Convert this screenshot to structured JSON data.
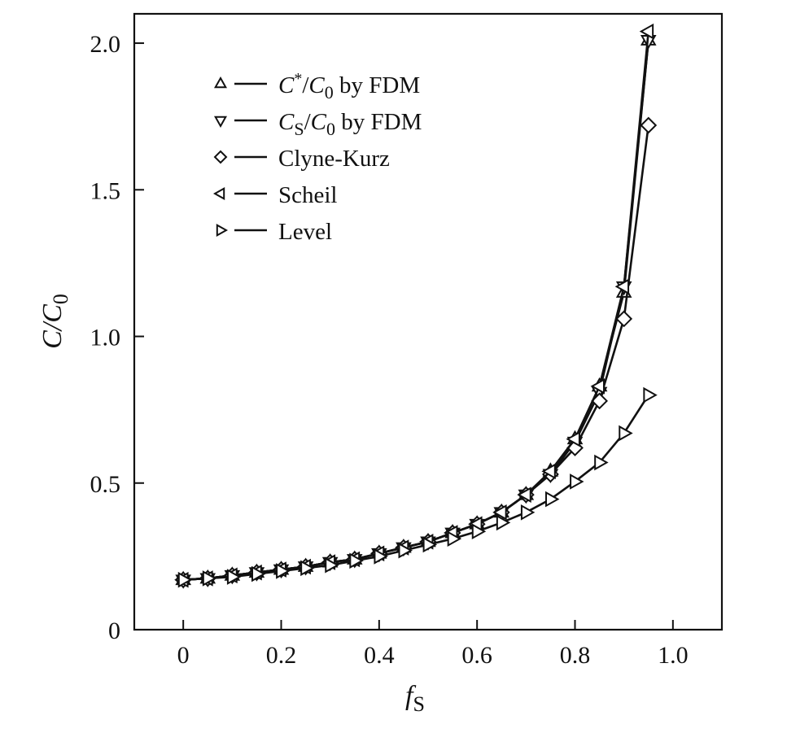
{
  "chart_data": {
    "type": "line",
    "xlabel": "f",
    "xlabel_sub": "S",
    "ylabel": "C/C",
    "ylabel_sub": "0",
    "xlim": [
      -0.1,
      1.1
    ],
    "ylim": [
      0,
      2.1
    ],
    "xticks": [
      0,
      0.2,
      0.4,
      0.6,
      0.8,
      1.0
    ],
    "xtick_labels": [
      "0",
      "0.2",
      "0.4",
      "0.6",
      "0.8",
      "1.0"
    ],
    "yticks": [
      0,
      0.5,
      1.0,
      1.5,
      2.0
    ],
    "ytick_labels": [
      "0",
      "0.5",
      "1.0",
      "1.5",
      "2.0"
    ],
    "grid": false,
    "legend_position": "top-left",
    "x": [
      0,
      0.05,
      0.1,
      0.15,
      0.2,
      0.25,
      0.3,
      0.35,
      0.4,
      0.45,
      0.5,
      0.55,
      0.6,
      0.65,
      0.7,
      0.75,
      0.8,
      0.85,
      0.9,
      0.95
    ],
    "series": [
      {
        "label_parts": [
          {
            "t": "C",
            "it": true
          },
          {
            "t": "*",
            "sup": true
          },
          {
            "t": "/"
          },
          {
            "t": "C",
            "it": true
          },
          {
            "t": "0",
            "sub": true
          },
          {
            "t": " by FDM"
          }
        ],
        "marker": "triangle-up",
        "values": [
          0.17,
          0.175,
          0.185,
          0.195,
          0.205,
          0.215,
          0.23,
          0.24,
          0.26,
          0.28,
          0.3,
          0.33,
          0.36,
          0.4,
          0.46,
          0.54,
          0.65,
          0.83,
          1.15,
          2.01
        ]
      },
      {
        "label_parts": [
          {
            "t": "C",
            "it": true
          },
          {
            "t": "S",
            "sub": true
          },
          {
            "t": "/"
          },
          {
            "t": "C",
            "it": true
          },
          {
            "t": "0",
            "sub": true
          },
          {
            "t": " by FDM"
          }
        ],
        "marker": "triangle-down",
        "values": [
          0.17,
          0.175,
          0.185,
          0.195,
          0.205,
          0.215,
          0.23,
          0.24,
          0.26,
          0.28,
          0.3,
          0.33,
          0.36,
          0.4,
          0.46,
          0.53,
          0.64,
          0.81,
          1.17,
          2.01
        ]
      },
      {
        "label_parts": [
          {
            "t": "Clyne-Kurz"
          }
        ],
        "marker": "diamond",
        "values": [
          0.17,
          0.175,
          0.185,
          0.195,
          0.205,
          0.215,
          0.23,
          0.24,
          0.26,
          0.28,
          0.3,
          0.33,
          0.36,
          0.4,
          0.46,
          0.53,
          0.62,
          0.78,
          1.06,
          1.72
        ]
      },
      {
        "label_parts": [
          {
            "t": "Scheil"
          }
        ],
        "marker": "triangle-left",
        "values": [
          0.17,
          0.175,
          0.185,
          0.195,
          0.205,
          0.215,
          0.23,
          0.24,
          0.26,
          0.28,
          0.3,
          0.33,
          0.36,
          0.4,
          0.46,
          0.54,
          0.65,
          0.83,
          1.17,
          2.04
        ]
      },
      {
        "label_parts": [
          {
            "t": "Level"
          }
        ],
        "marker": "triangle-right",
        "values": [
          0.17,
          0.175,
          0.18,
          0.19,
          0.2,
          0.21,
          0.22,
          0.235,
          0.25,
          0.27,
          0.29,
          0.31,
          0.335,
          0.365,
          0.4,
          0.445,
          0.505,
          0.57,
          0.67,
          0.8
        ]
      }
    ]
  }
}
